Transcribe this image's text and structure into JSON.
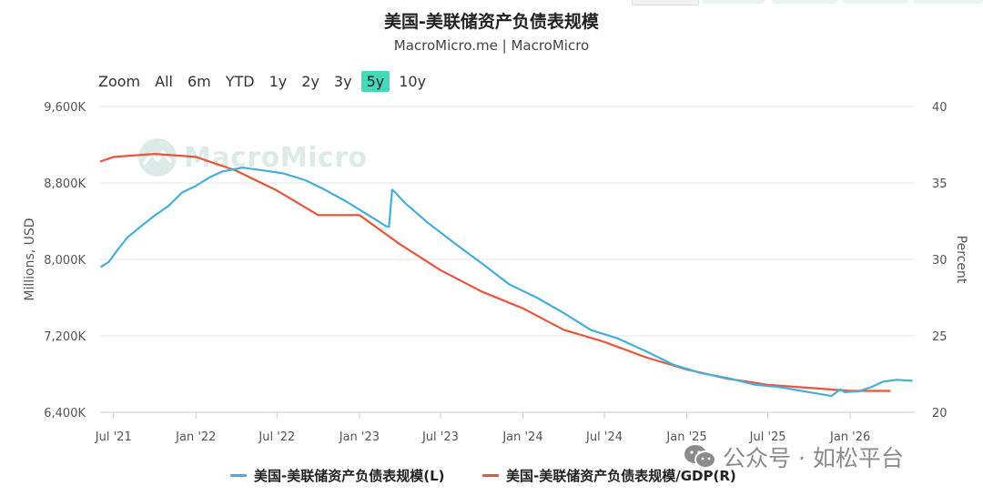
{
  "header": {
    "title": "美国-美联储资产负债表规模",
    "subtitle": "MacroMicro.me | MacroMicro"
  },
  "zoom": {
    "label": "Zoom",
    "options": [
      "All",
      "6m",
      "YTD",
      "1y",
      "2y",
      "3y",
      "5y",
      "10y"
    ],
    "active": "5y"
  },
  "watermark": "MacroMicro",
  "footer_watermark": "公众号 · 如松平台",
  "colors": {
    "left_series": "#45aedb",
    "right_series": "#e8553a",
    "zoom_active": "#44d9b8"
  },
  "chart_data": {
    "type": "line",
    "title": "美国-美联储资产负债表规模",
    "subtitle": "MacroMicro.me | MacroMicro",
    "ylabel_left": "Millions, USD",
    "ylabel_right": "Percent",
    "ylim_left": [
      6400000,
      9600000
    ],
    "yticks_left": [
      6400000,
      7200000,
      8000000,
      8800000,
      9600000
    ],
    "ytick_labels_left": [
      "6,400K",
      "7,200K",
      "8,000K",
      "8,800K",
      "9,600K"
    ],
    "ylim_right": [
      20,
      40
    ],
    "yticks_right": [
      20,
      25,
      30,
      35,
      40
    ],
    "ytick_labels_right": [
      "20",
      "25",
      "30",
      "35",
      "40"
    ],
    "xlim": [
      "2021-06-01",
      "2026-05-25"
    ],
    "xticks": [
      "2021-07-01",
      "2022-01-01",
      "2022-07-01",
      "2023-01-01",
      "2023-07-01",
      "2024-01-01",
      "2024-07-01",
      "2025-01-01",
      "2025-07-01",
      "2026-01-01"
    ],
    "xtick_labels": [
      "Jul '21",
      "Jan '22",
      "Jul '22",
      "Jan '23",
      "Jul '23",
      "Jan '24",
      "Jul '24",
      "Jan '25",
      "Jul '25",
      "Jan '26"
    ],
    "grid": "horizontal",
    "legend_position": "bottom",
    "series": [
      {
        "name": "美国-美联储资产负债表规模(L)",
        "axis": "left",
        "points": [
          [
            "2021-06-02",
            7920000
          ],
          [
            "2021-06-20",
            7970000
          ],
          [
            "2021-07-10",
            8100000
          ],
          [
            "2021-08-01",
            8230000
          ],
          [
            "2021-09-01",
            8350000
          ],
          [
            "2021-10-01",
            8460000
          ],
          [
            "2021-11-01",
            8560000
          ],
          [
            "2021-12-01",
            8700000
          ],
          [
            "2022-01-01",
            8770000
          ],
          [
            "2022-02-01",
            8860000
          ],
          [
            "2022-03-01",
            8920000
          ],
          [
            "2022-04-15",
            8960000
          ],
          [
            "2022-06-01",
            8930000
          ],
          [
            "2022-07-15",
            8900000
          ],
          [
            "2022-09-01",
            8830000
          ],
          [
            "2022-10-15",
            8730000
          ],
          [
            "2022-12-01",
            8610000
          ],
          [
            "2023-01-15",
            8480000
          ],
          [
            "2023-03-01",
            8350000
          ],
          [
            "2023-03-08",
            8340000
          ],
          [
            "2023-03-15",
            8730000
          ],
          [
            "2023-03-22",
            8700000
          ],
          [
            "2023-04-15",
            8580000
          ],
          [
            "2023-06-01",
            8390000
          ],
          [
            "2023-08-01",
            8170000
          ],
          [
            "2023-10-01",
            7960000
          ],
          [
            "2023-12-01",
            7740000
          ],
          [
            "2024-02-01",
            7600000
          ],
          [
            "2024-04-01",
            7440000
          ],
          [
            "2024-06-01",
            7260000
          ],
          [
            "2024-08-01",
            7170000
          ],
          [
            "2024-10-01",
            7040000
          ],
          [
            "2024-12-01",
            6900000
          ],
          [
            "2025-02-01",
            6810000
          ],
          [
            "2025-04-01",
            6760000
          ],
          [
            "2025-06-01",
            6690000
          ],
          [
            "2025-08-01",
            6660000
          ],
          [
            "2025-10-01",
            6610000
          ],
          [
            "2025-11-20",
            6570000
          ],
          [
            "2025-12-10",
            6640000
          ],
          [
            "2025-12-20",
            6610000
          ],
          [
            "2026-01-20",
            6620000
          ],
          [
            "2026-02-15",
            6660000
          ],
          [
            "2026-03-15",
            6720000
          ],
          [
            "2026-04-15",
            6740000
          ],
          [
            "2026-05-20",
            6730000
          ]
        ]
      },
      {
        "name": "美国-美联储资产负债表规模/GDP(R)",
        "axis": "right",
        "points": [
          [
            "2021-06-01",
            36.4
          ],
          [
            "2021-07-01",
            36.7
          ],
          [
            "2021-10-01",
            36.9
          ],
          [
            "2022-01-01",
            36.7
          ],
          [
            "2022-04-01",
            35.8
          ],
          [
            "2022-07-01",
            34.5
          ],
          [
            "2022-10-01",
            32.9
          ],
          [
            "2023-01-01",
            32.9
          ],
          [
            "2023-04-01",
            31.0
          ],
          [
            "2023-07-01",
            29.3
          ],
          [
            "2023-10-01",
            27.9
          ],
          [
            "2024-01-01",
            26.8
          ],
          [
            "2024-04-01",
            25.4
          ],
          [
            "2024-07-01",
            24.6
          ],
          [
            "2024-10-01",
            23.6
          ],
          [
            "2025-01-01",
            22.8
          ],
          [
            "2025-04-01",
            22.2
          ],
          [
            "2025-07-01",
            21.8
          ],
          [
            "2025-10-01",
            21.6
          ],
          [
            "2026-01-01",
            21.4
          ],
          [
            "2026-04-01",
            21.4
          ]
        ]
      }
    ]
  }
}
